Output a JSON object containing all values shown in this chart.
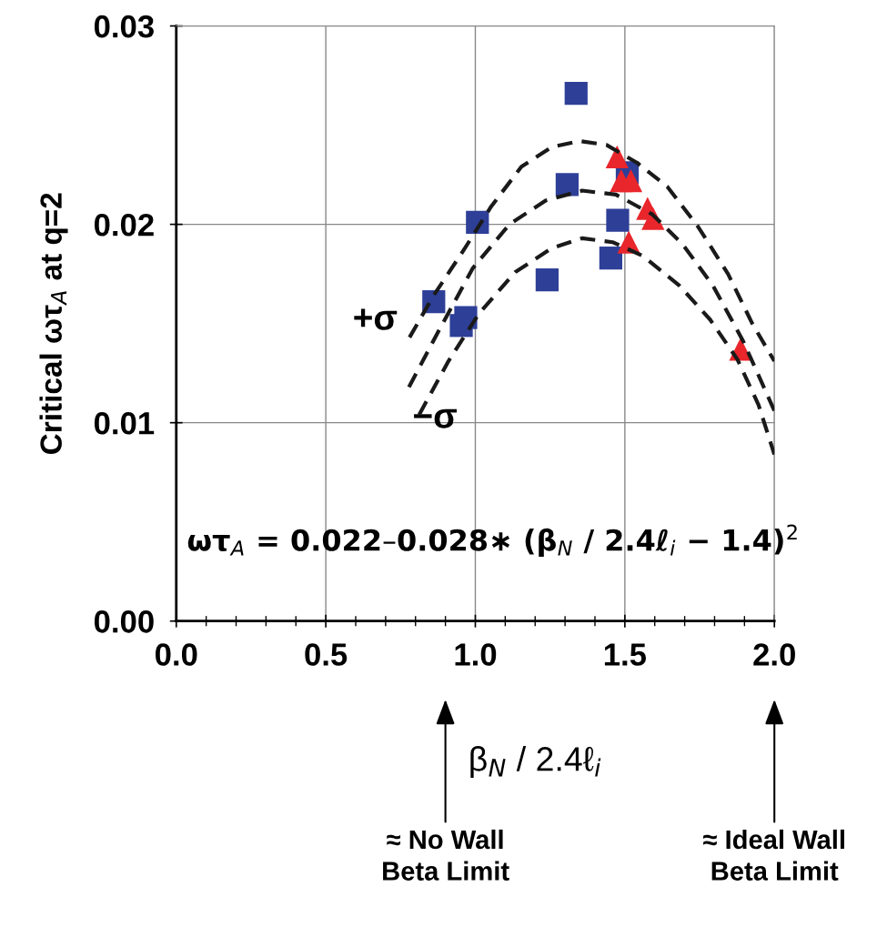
{
  "chart_data": {
    "type": "scatter",
    "xlabel": "β$_{N}$ / 2.4ℓ$_{i}$",
    "ylabel": "Critical ωτ$_{A}$ at q=2",
    "xlim": [
      0,
      2
    ],
    "ylim": [
      0,
      0.03
    ],
    "xticks": [
      {
        "value": 0,
        "label": "0.0"
      },
      {
        "value": 0.5,
        "label": "0.5"
      },
      {
        "value": 1,
        "label": "1.0"
      },
      {
        "value": 1.5,
        "label": "1.5"
      },
      {
        "value": 2,
        "label": "2.0"
      }
    ],
    "yticks": [
      {
        "value": 0,
        "label": "0.00"
      },
      {
        "value": 0.01,
        "label": "0.01"
      },
      {
        "value": 0.02,
        "label": "0.02"
      },
      {
        "value": 0.03,
        "label": "0.03"
      }
    ],
    "grid": true,
    "legend": false,
    "series": [
      {
        "marker": "square",
        "color": "#2e3f98",
        "x": [
          1.337,
          1.307,
          1.508,
          1.007,
          1.476,
          1.453,
          1.24,
          0.861,
          0.968,
          0.953
        ],
        "values": [
          0.0266,
          0.022,
          0.0226,
          0.0201,
          0.0202,
          0.0183,
          0.0172,
          0.0161,
          0.0153,
          0.0149
        ]
      },
      {
        "marker": "triangle",
        "color": "#e8262b",
        "x": [
          1.474,
          1.488,
          1.52,
          1.576,
          1.594,
          1.513,
          1.887
        ],
        "values": [
          0.0234,
          0.0222,
          0.0222,
          0.0208,
          0.0203,
          0.0191,
          0.0137
        ]
      },
      {
        "type": "line",
        "marker": "none",
        "line_style": "dashed",
        "color": "#1a1a1a",
        "x": [
          0.78,
          0.86,
          0.961,
          1.053,
          1.154,
          1.256,
          1.348,
          1.439,
          1.541,
          1.642,
          1.744,
          1.845,
          1.926,
          2.0
        ],
        "values": [
          0.0143,
          0.0164,
          0.0187,
          0.0209,
          0.0229,
          0.0239,
          0.0242,
          0.024,
          0.0231,
          0.0219,
          0.0199,
          0.0175,
          0.015,
          0.0131
        ]
      },
      {
        "type": "line",
        "marker": "none",
        "line_style": "dashed",
        "color": "#1a1a1a",
        "x": [
          0.778,
          0.88,
          0.992,
          1.114,
          1.235,
          1.357,
          1.47,
          1.592,
          1.693,
          1.795,
          1.896,
          2.0
        ],
        "values": [
          0.0118,
          0.0147,
          0.0178,
          0.02,
          0.0212,
          0.0217,
          0.0215,
          0.0205,
          0.019,
          0.0169,
          0.0141,
          0.0106
        ]
      },
      {
        "type": "line",
        "marker": "none",
        "line_style": "dashed",
        "color": "#1a1a1a",
        "x": [
          0.812,
          0.91,
          1.012,
          1.134,
          1.256,
          1.357,
          1.459,
          1.561,
          1.683,
          1.785,
          1.876,
          1.947,
          2.0
        ],
        "values": [
          0.0104,
          0.0131,
          0.0155,
          0.0176,
          0.0188,
          0.0193,
          0.0191,
          0.0184,
          0.0169,
          0.0152,
          0.0132,
          0.0109,
          0.0084
        ]
      }
    ],
    "annotations": [
      "+σ",
      "−σ",
      "ωτ$_{A}$ = 0.022–0.028∗ (β$_{N}$ / 2.4ℓ$_{i}$ − 1.4)$^{2}$",
      "≈ No Wall\nBeta Limit",
      "≈ Ideal Wall\nBeta Limit"
    ]
  }
}
